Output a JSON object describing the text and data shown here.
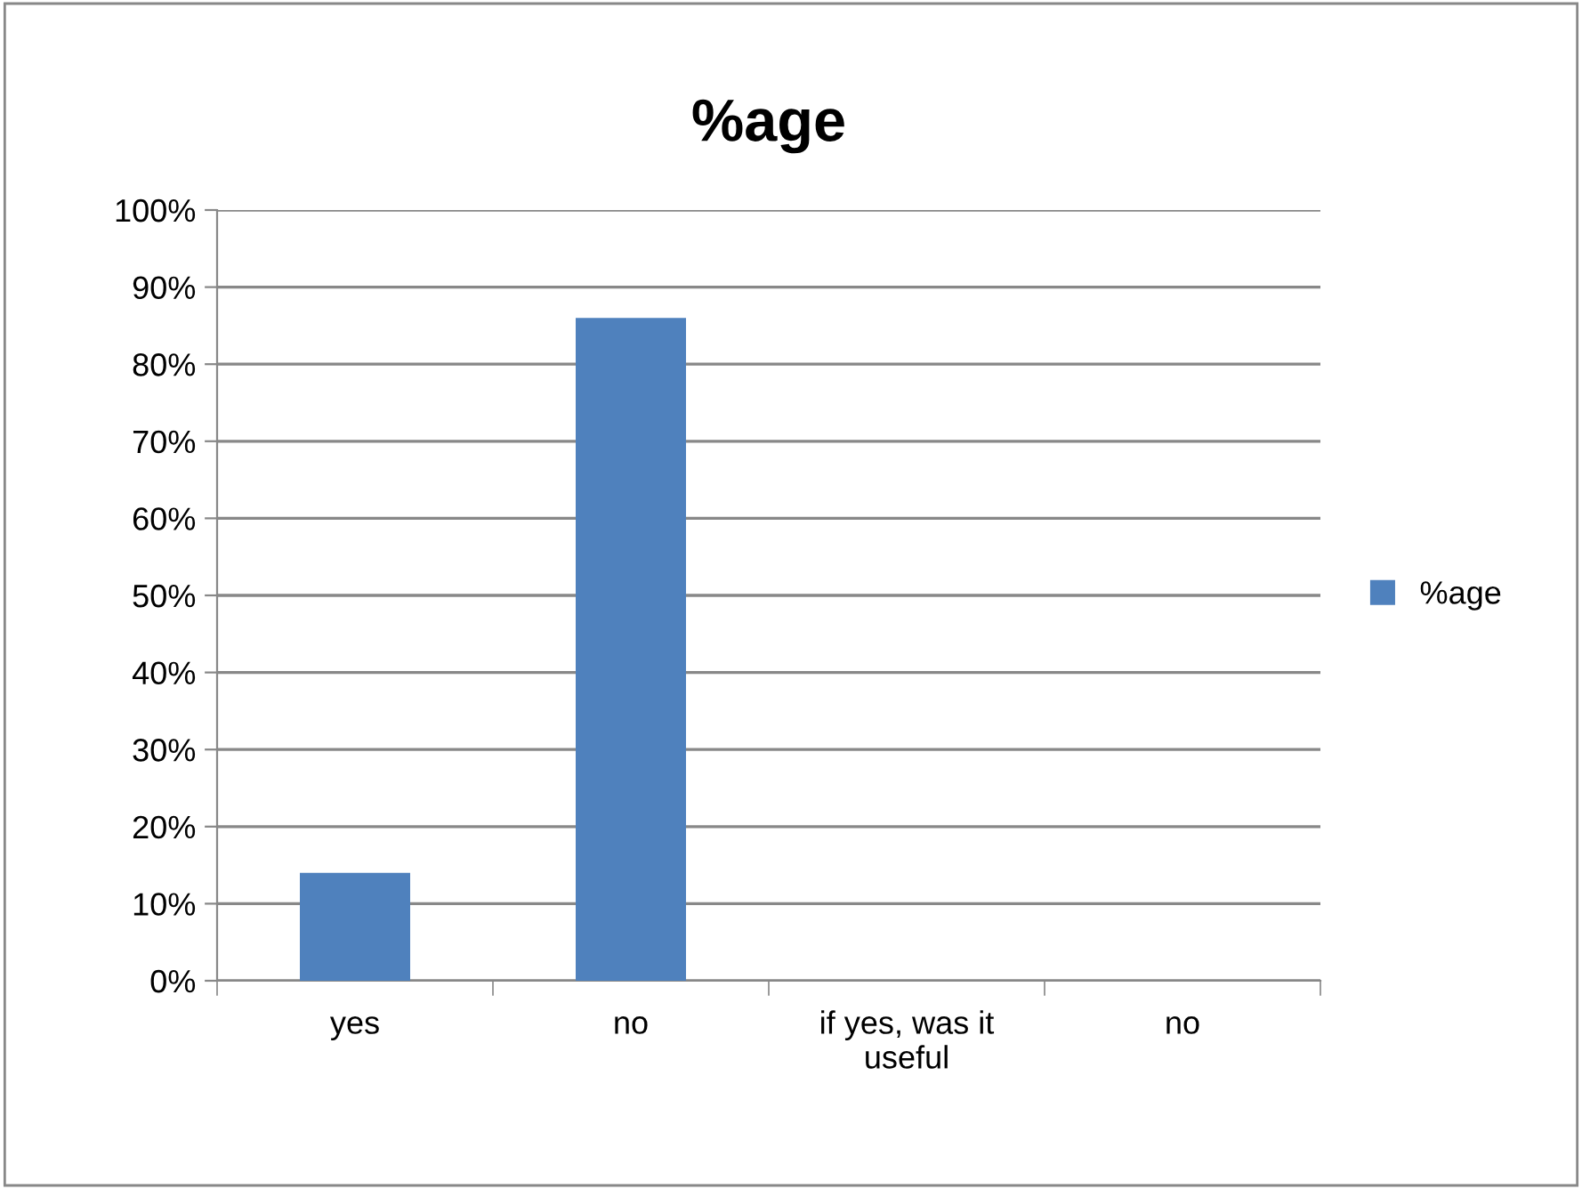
{
  "chart_data": {
    "type": "bar",
    "title": "%age",
    "categories": [
      "yes",
      "no",
      "if yes, was it\nuseful",
      "no"
    ],
    "series": [
      {
        "name": "%age",
        "color": "#4f81bd",
        "values": [
          14,
          86,
          null,
          null
        ]
      }
    ],
    "ylim": [
      0,
      100
    ],
    "yticks": [
      {
        "value": 0,
        "label": "0%"
      },
      {
        "value": 10,
        "label": "10%"
      },
      {
        "value": 20,
        "label": "20%"
      },
      {
        "value": 30,
        "label": "30%"
      },
      {
        "value": 40,
        "label": "40%"
      },
      {
        "value": 50,
        "label": "50%"
      },
      {
        "value": 60,
        "label": "60%"
      },
      {
        "value": 70,
        "label": "70%"
      },
      {
        "value": 80,
        "label": "80%"
      },
      {
        "value": 90,
        "label": "90%"
      },
      {
        "value": 100,
        "label": "100%"
      }
    ],
    "grid": "y",
    "legend": "right"
  }
}
